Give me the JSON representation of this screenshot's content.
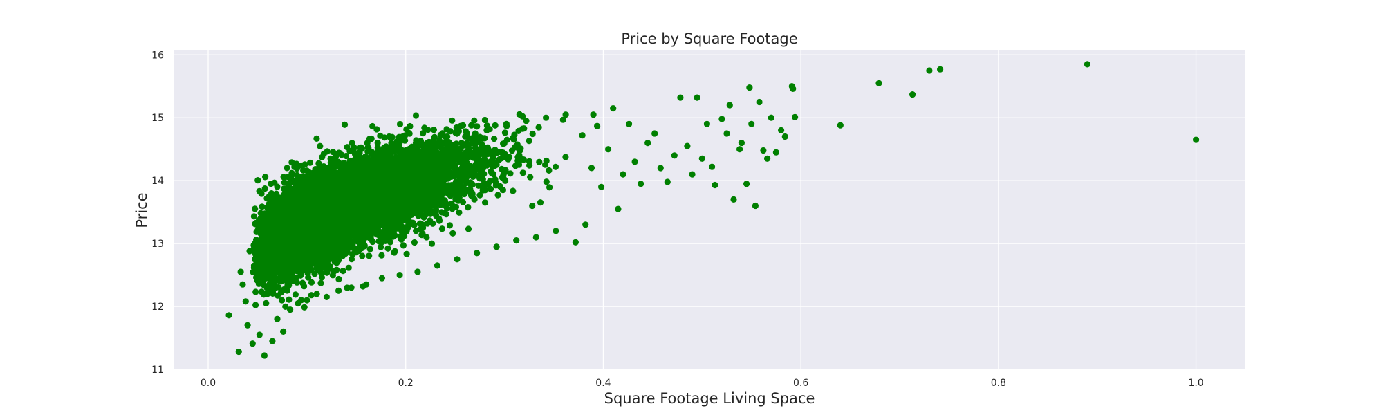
{
  "chart_data": {
    "type": "scatter",
    "title": "Price by Square Footage",
    "xlabel": "Square Footage Living Space",
    "ylabel": "Price",
    "xlim": [
      -0.035,
      1.05
    ],
    "ylim": [
      11.0,
      16.08
    ],
    "xticks": [
      "0.0",
      "0.2",
      "0.4",
      "0.6",
      "0.8",
      "1.0"
    ],
    "yticks": [
      "11",
      "12",
      "13",
      "14",
      "15",
      "16"
    ],
    "grid": true,
    "legend": "none",
    "colors": {
      "marker": "#008000",
      "plot_bg": "#eaeaf2",
      "grid": "#ffffff"
    },
    "series": [
      {
        "points": [
          [
            0.021,
            11.86
          ],
          [
            0.031,
            11.28
          ],
          [
            0.033,
            12.55
          ],
          [
            0.035,
            12.35
          ],
          [
            0.038,
            12.08
          ],
          [
            0.04,
            11.7
          ],
          [
            0.042,
            12.88
          ],
          [
            0.045,
            11.41
          ],
          [
            0.047,
            12.65
          ],
          [
            0.05,
            12.95
          ],
          [
            0.052,
            11.55
          ],
          [
            0.055,
            13.05
          ],
          [
            0.057,
            11.22
          ],
          [
            0.06,
            12.2
          ],
          [
            0.062,
            13.25
          ],
          [
            0.065,
            11.45
          ],
          [
            0.068,
            13.4
          ],
          [
            0.07,
            11.8
          ],
          [
            0.073,
            13.55
          ],
          [
            0.076,
            11.6
          ],
          [
            0.08,
            13.65
          ],
          [
            0.083,
            11.95
          ],
          [
            0.087,
            13.75
          ],
          [
            0.091,
            12.05
          ],
          [
            0.095,
            13.85
          ],
          [
            0.1,
            12.1
          ],
          [
            0.105,
            13.8
          ],
          [
            0.11,
            12.2
          ],
          [
            0.115,
            13.95
          ],
          [
            0.12,
            12.15
          ],
          [
            0.126,
            14.0
          ],
          [
            0.132,
            12.25
          ],
          [
            0.138,
            14.05
          ],
          [
            0.145,
            12.3
          ],
          [
            0.152,
            14.15
          ],
          [
            0.16,
            12.35
          ],
          [
            0.168,
            14.2
          ],
          [
            0.176,
            12.45
          ],
          [
            0.185,
            14.35
          ],
          [
            0.194,
            12.5
          ],
          [
            0.203,
            14.45
          ],
          [
            0.212,
            12.55
          ],
          [
            0.222,
            14.6
          ],
          [
            0.232,
            12.65
          ],
          [
            0.242,
            14.7
          ],
          [
            0.252,
            12.75
          ],
          [
            0.262,
            14.75
          ],
          [
            0.272,
            12.85
          ],
          [
            0.282,
            14.8
          ],
          [
            0.292,
            12.95
          ],
          [
            0.302,
            14.9
          ],
          [
            0.312,
            13.05
          ],
          [
            0.322,
            14.95
          ],
          [
            0.332,
            13.1
          ],
          [
            0.342,
            15.0
          ],
          [
            0.352,
            13.2
          ],
          [
            0.362,
            15.05
          ],
          [
            0.372,
            13.02
          ],
          [
            0.382,
            13.3
          ],
          [
            0.39,
            15.05
          ],
          [
            0.398,
            13.9
          ],
          [
            0.405,
            14.5
          ],
          [
            0.41,
            15.15
          ],
          [
            0.415,
            13.55
          ],
          [
            0.42,
            14.1
          ],
          [
            0.426,
            14.9
          ],
          [
            0.432,
            14.3
          ],
          [
            0.438,
            13.95
          ],
          [
            0.445,
            14.6
          ],
          [
            0.452,
            14.75
          ],
          [
            0.458,
            14.2
          ],
          [
            0.465,
            13.98
          ],
          [
            0.472,
            14.4
          ],
          [
            0.478,
            15.32
          ],
          [
            0.485,
            14.55
          ],
          [
            0.49,
            14.1
          ],
          [
            0.495,
            15.32
          ],
          [
            0.5,
            14.35
          ],
          [
            0.505,
            14.9
          ],
          [
            0.51,
            14.22
          ],
          [
            0.513,
            13.93
          ],
          [
            0.52,
            14.98
          ],
          [
            0.525,
            14.75
          ],
          [
            0.528,
            15.2
          ],
          [
            0.532,
            13.7
          ],
          [
            0.538,
            14.5
          ],
          [
            0.54,
            14.6
          ],
          [
            0.545,
            13.95
          ],
          [
            0.548,
            15.48
          ],
          [
            0.55,
            14.9
          ],
          [
            0.554,
            13.6
          ],
          [
            0.558,
            15.25
          ],
          [
            0.562,
            14.48
          ],
          [
            0.566,
            14.35
          ],
          [
            0.57,
            15.0
          ],
          [
            0.575,
            14.45
          ],
          [
            0.58,
            14.8
          ],
          [
            0.584,
            14.7
          ],
          [
            0.591,
            15.5
          ],
          [
            0.592,
            15.46
          ],
          [
            0.594,
            15.01
          ],
          [
            0.64,
            14.88
          ],
          [
            0.679,
            15.55
          ],
          [
            0.713,
            15.37
          ],
          [
            0.73,
            15.75
          ],
          [
            0.741,
            15.77
          ],
          [
            0.89,
            15.85
          ],
          [
            1.0,
            14.65
          ]
        ]
      }
    ]
  }
}
